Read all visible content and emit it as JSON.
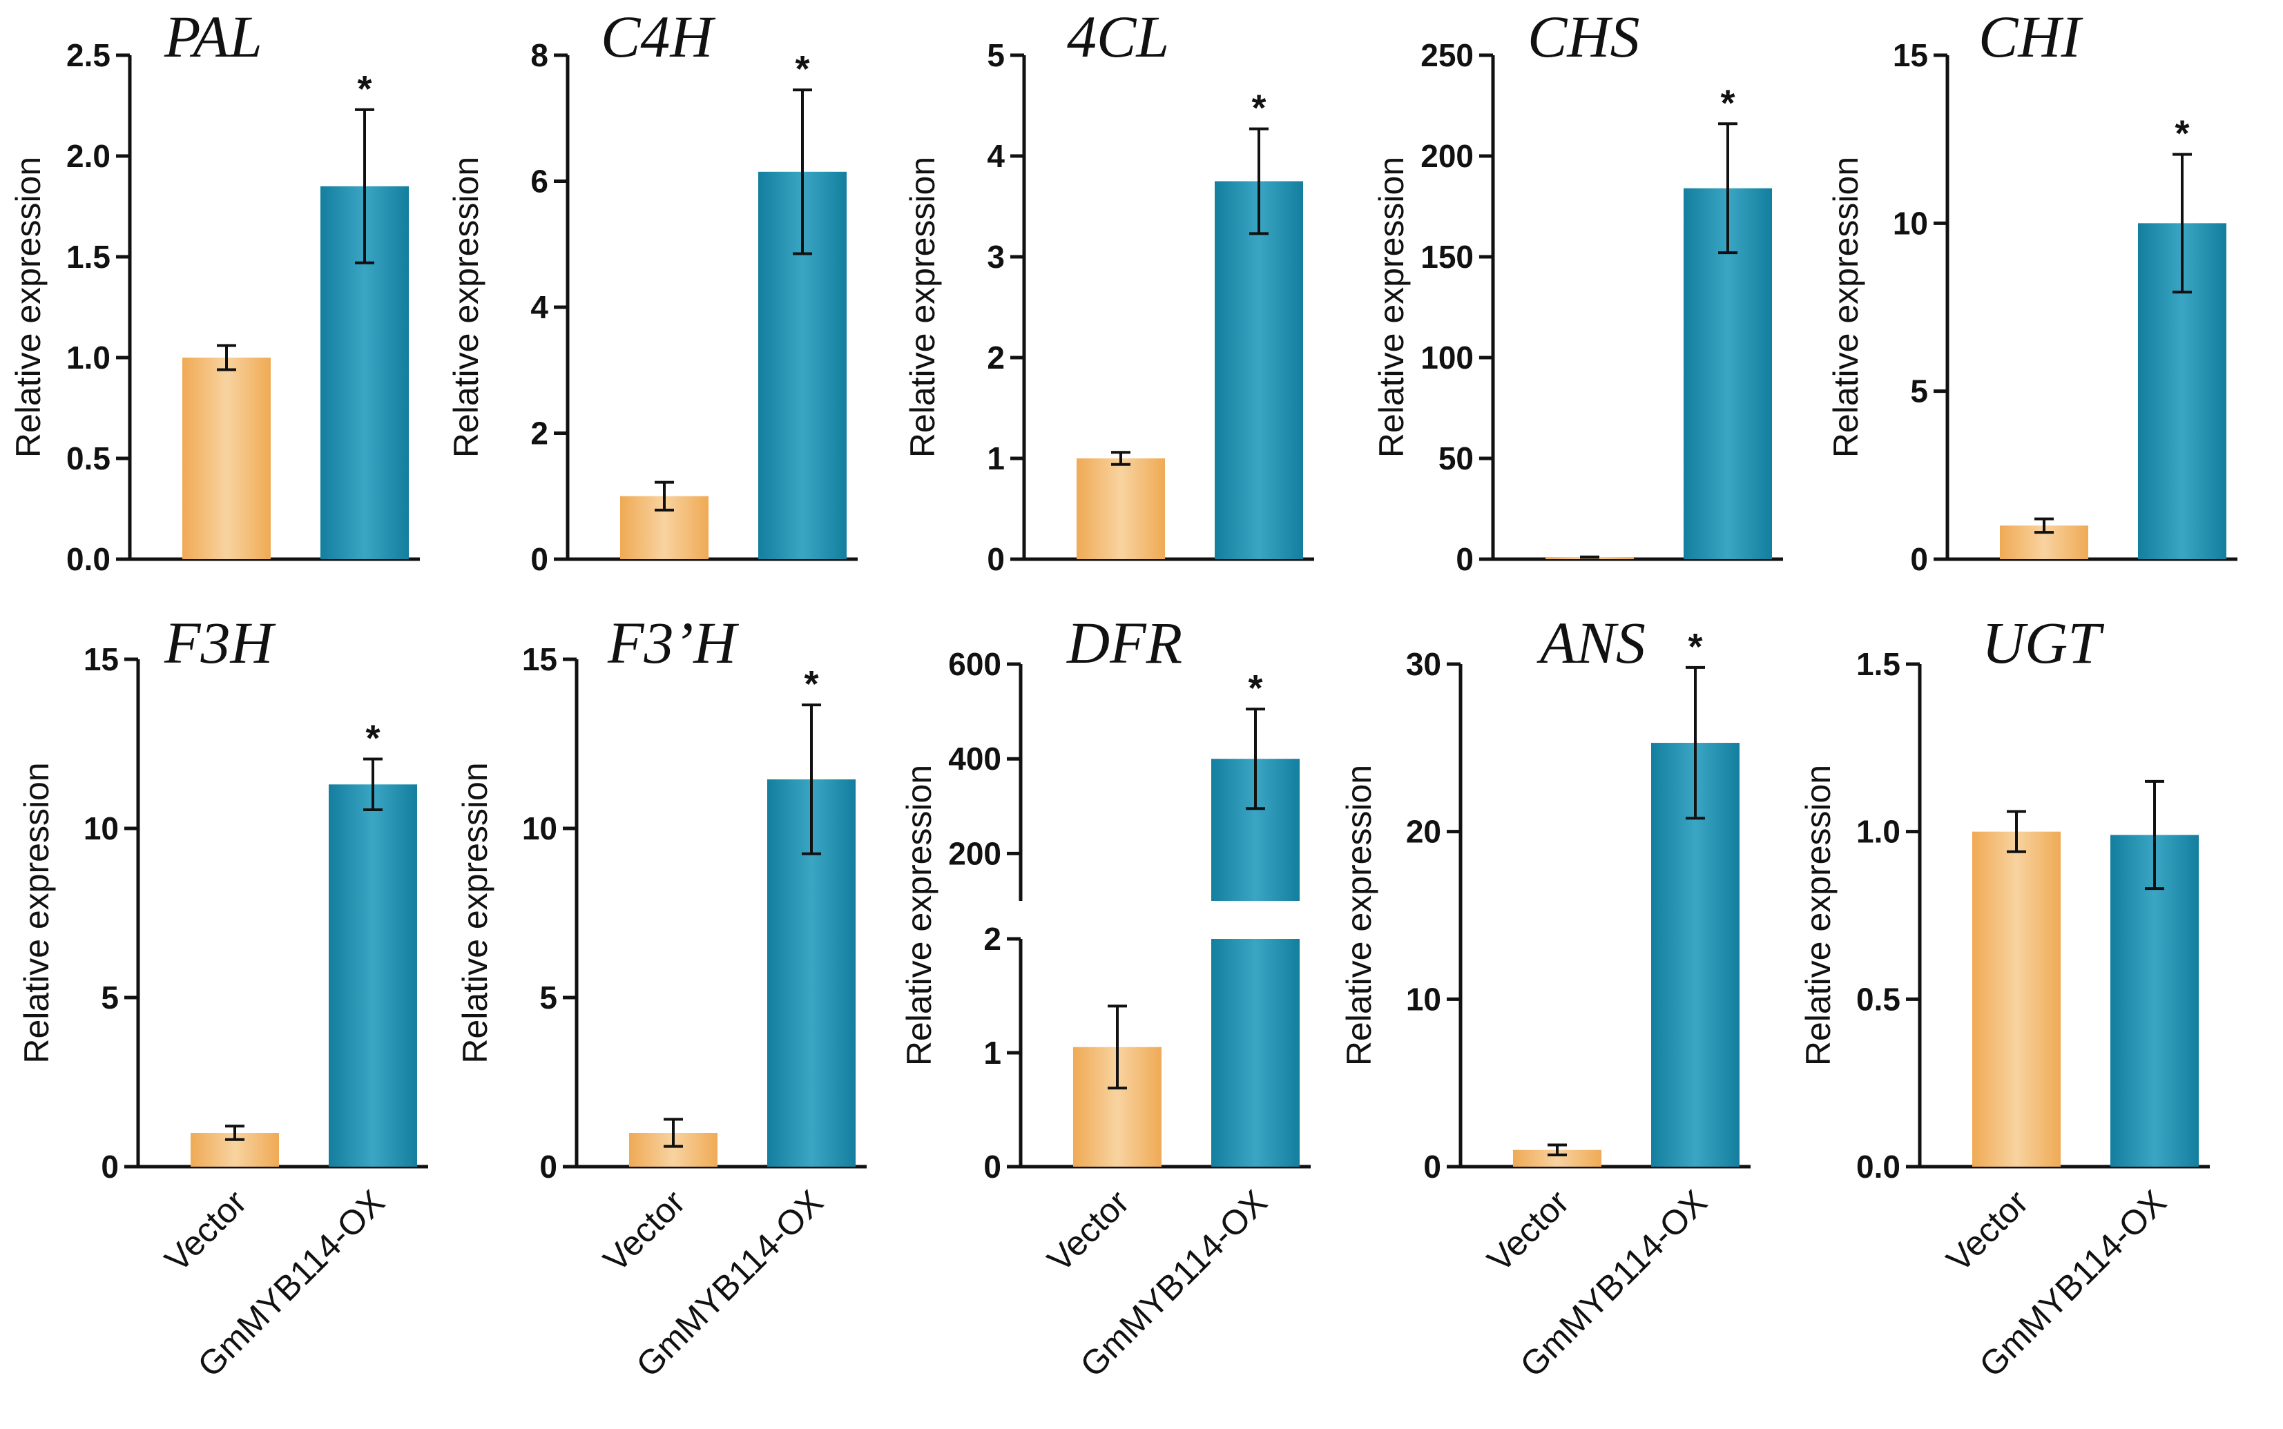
{
  "colors": {
    "vector": "#EFAA55",
    "vector_light": "#F8D3A0",
    "ox": "#137E9D",
    "ox_light": "#3AA6C4",
    "axis": "#111111"
  },
  "chart_data": [
    {
      "type": "bar",
      "title": "PAL",
      "ylabel": "Relative expression",
      "categories": [
        "Vector",
        "GmMYB114-OX"
      ],
      "values": [
        1.0,
        1.85
      ],
      "errors": [
        0.06,
        0.38
      ],
      "significance": [
        "",
        "*"
      ],
      "ylim": [
        0,
        2.5
      ],
      "yticks": [
        0,
        0.5,
        1.0,
        1.5,
        2.0,
        2.5
      ],
      "ytick_labels": [
        "0.0",
        "0.5",
        "1.0",
        "1.5",
        "2.0",
        "2.5"
      ]
    },
    {
      "type": "bar",
      "title": "C4H",
      "ylabel": "Relative expression",
      "categories": [
        "Vector",
        "GmMYB114-OX"
      ],
      "values": [
        1.0,
        6.15
      ],
      "errors": [
        0.22,
        1.3
      ],
      "significance": [
        "",
        "*"
      ],
      "ylim": [
        0,
        8
      ],
      "yticks": [
        0,
        2,
        4,
        6,
        8
      ],
      "ytick_labels": [
        "0",
        "2",
        "4",
        "6",
        "8"
      ]
    },
    {
      "type": "bar",
      "title": "4CL",
      "ylabel": "Relative expression",
      "categories": [
        "Vector",
        "GmMYB114-OX"
      ],
      "values": [
        1.0,
        3.75
      ],
      "errors": [
        0.06,
        0.52
      ],
      "significance": [
        "",
        "*"
      ],
      "ylim": [
        0,
        5
      ],
      "yticks": [
        0,
        1,
        2,
        3,
        4,
        5
      ],
      "ytick_labels": [
        "0",
        "1",
        "2",
        "3",
        "4",
        "5"
      ]
    },
    {
      "type": "bar",
      "title": "CHS",
      "ylabel": "Relative expression",
      "categories": [
        "Vector",
        "GmMYB114-OX"
      ],
      "values": [
        1.0,
        184
      ],
      "errors": [
        0.1,
        32
      ],
      "significance": [
        "",
        "*"
      ],
      "ylim": [
        0,
        250
      ],
      "yticks": [
        0,
        50,
        100,
        150,
        200,
        250
      ],
      "ytick_labels": [
        "0",
        "50",
        "100",
        "150",
        "200",
        "250"
      ]
    },
    {
      "type": "bar",
      "title": "CHI",
      "ylabel": "Relative expression",
      "categories": [
        "Vector",
        "GmMYB114-OX"
      ],
      "values": [
        1.0,
        10.0
      ],
      "errors": [
        0.2,
        2.05
      ],
      "significance": [
        "",
        "*"
      ],
      "ylim": [
        0,
        15
      ],
      "yticks": [
        0,
        5,
        10,
        15
      ],
      "ytick_labels": [
        "0",
        "5",
        "10",
        "15"
      ]
    },
    {
      "type": "bar",
      "title": "F3H",
      "ylabel": "Relative expression",
      "categories": [
        "Vector",
        "GmMYB114-OX"
      ],
      "values": [
        1.0,
        11.3
      ],
      "errors": [
        0.2,
        0.75
      ],
      "significance": [
        "",
        "*"
      ],
      "ylim": [
        0,
        15
      ],
      "yticks": [
        0,
        5,
        10,
        15
      ],
      "ytick_labels": [
        "0",
        "5",
        "10",
        "15"
      ]
    },
    {
      "type": "bar",
      "title": "F3’H",
      "ylabel": "Relative expression",
      "categories": [
        "Vector",
        "GmMYB114-OX"
      ],
      "values": [
        1.0,
        11.45
      ],
      "errors": [
        0.4,
        2.2
      ],
      "significance": [
        "",
        "*"
      ],
      "ylim": [
        0,
        15
      ],
      "yticks": [
        0,
        5,
        10,
        15
      ],
      "ytick_labels": [
        "0",
        "5",
        "10",
        "15"
      ]
    },
    {
      "type": "bar",
      "title": "DFR",
      "ylabel": "Relative expression",
      "categories": [
        "Vector",
        "GmMYB114-OX"
      ],
      "values": [
        1.05,
        400
      ],
      "errors": [
        0.36,
        105
      ],
      "significance": [
        "",
        "*"
      ],
      "broken_axis": true,
      "lower_ylim": [
        0,
        2
      ],
      "lower_yticks": [
        0,
        1,
        2
      ],
      "upper_ylim": [
        100,
        600
      ],
      "upper_yticks": [
        200,
        400,
        600
      ],
      "ytick_labels": [
        "0",
        "1",
        "2",
        "200",
        "400",
        "600"
      ]
    },
    {
      "type": "bar",
      "title": "ANS",
      "ylabel": "Relative expression",
      "categories": [
        "Vector",
        "GmMYB114-OX"
      ],
      "values": [
        1.0,
        25.3
      ],
      "errors": [
        0.3,
        4.5
      ],
      "significance": [
        "",
        "*"
      ],
      "ylim": [
        0,
        30
      ],
      "yticks": [
        0,
        10,
        20,
        30
      ],
      "ytick_labels": [
        "0",
        "10",
        "20",
        "30"
      ]
    },
    {
      "type": "bar",
      "title": "UGT",
      "ylabel": "Relative expression",
      "categories": [
        "Vector",
        "GmMYB114-OX"
      ],
      "values": [
        1.0,
        0.99
      ],
      "errors": [
        0.06,
        0.16
      ],
      "significance": [
        "",
        ""
      ],
      "ylim": [
        0,
        1.5
      ],
      "yticks": [
        0,
        0.5,
        1.0,
        1.5
      ],
      "ytick_labels": [
        "0.0",
        "0.5",
        "1.0",
        "1.5"
      ]
    }
  ]
}
